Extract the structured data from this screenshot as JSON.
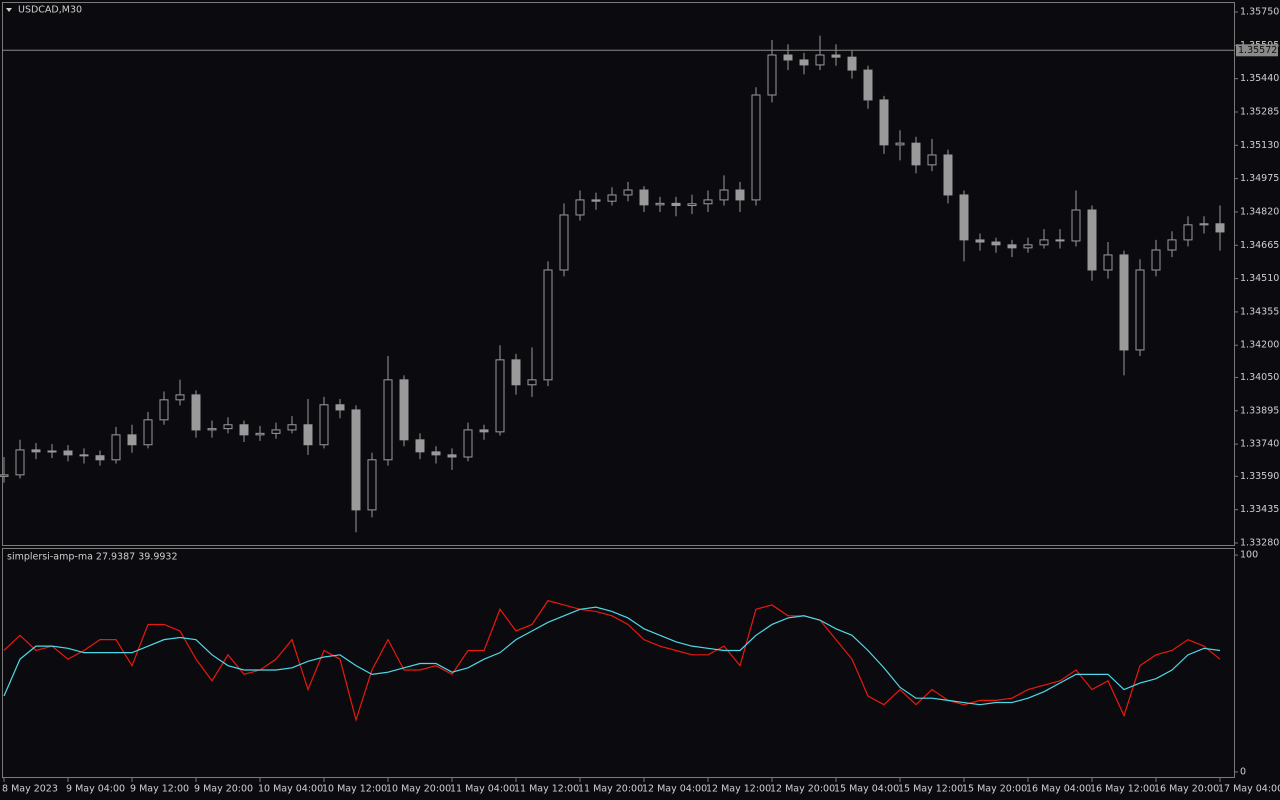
{
  "chart_data": [
    {
      "type": "candlestick",
      "title": "USDCAD,M30",
      "color": "#9a9a9a",
      "line_color": "#8a8a8a",
      "categories": [
        "8 May 2023",
        null,
        null,
        null,
        "9 May 04:00",
        null,
        null,
        null,
        "9 May 12:00",
        null,
        null,
        null,
        "9 May 20:00",
        null,
        null,
        null,
        "10 May 04:00",
        null,
        null,
        null,
        "10 May 12:00",
        null,
        null,
        null,
        "10 May 20:00",
        null,
        null,
        null,
        "11 May 04:00",
        null,
        null,
        null,
        "11 May 12:00",
        null,
        null,
        null,
        "11 May 20:00",
        null,
        null,
        null,
        "12 May 04:00",
        null,
        null,
        null,
        "12 May 12:00",
        null,
        null,
        null,
        "12 May 20:00",
        null,
        null,
        null,
        "15 May 04:00",
        null,
        null,
        null,
        "15 May 12:00",
        null,
        null,
        null,
        "15 May 20:00",
        null,
        null,
        null,
        "16 May 04:00",
        null,
        null,
        null,
        "16 May 12:00",
        null,
        null,
        null,
        "16 May 20:00",
        null,
        null,
        null,
        "17 May 04:00"
      ],
      "open": [
        1.3359,
        1.33597,
        1.33713,
        1.33704,
        1.33708,
        1.3369,
        1.33686,
        1.33667,
        1.33783,
        1.33737,
        1.33853,
        1.33946,
        1.33969,
        1.33806,
        1.33812,
        1.3383,
        1.33783,
        1.3379,
        1.33806,
        1.3383,
        1.33737,
        1.33923,
        1.33899,
        1.33434,
        1.33667,
        1.34039,
        1.3376,
        1.33704,
        1.3369,
        1.3368,
        1.33806,
        1.33797,
        1.34132,
        1.34016,
        1.34039,
        1.3455,
        1.34806,
        1.34876,
        1.3487,
        1.34899,
        1.34922,
        1.34853,
        1.3486,
        1.3485,
        1.34858,
        1.34876,
        1.34922,
        1.34876,
        1.35364,
        1.3555,
        1.35527,
        1.35504,
        1.3555,
        1.3554,
        1.3548,
        1.35341,
        1.35132,
        1.3514,
        1.35039,
        1.35085,
        1.34899,
        1.3469,
        1.3468,
        1.34667,
        1.34653,
        1.34667,
        1.3469,
        1.34685,
        1.34829,
        1.3455,
        1.3462,
        1.34178,
        1.3455,
        1.34643,
        1.3469,
        1.3476,
        1.34765
      ],
      "high": [
        1.3368,
        1.3376,
        1.33745,
        1.3374,
        1.33735,
        1.3372,
        1.3371,
        1.3382,
        1.3383,
        1.3389,
        1.33985,
        1.3404,
        1.3399,
        1.3385,
        1.33865,
        1.3385,
        1.33825,
        1.3384,
        1.3387,
        1.3395,
        1.3396,
        1.3395,
        1.3392,
        1.337,
        1.3415,
        1.3406,
        1.3379,
        1.3373,
        1.3372,
        1.3384,
        1.3383,
        1.342,
        1.3416,
        1.3419,
        1.3459,
        1.3486,
        1.3492,
        1.3491,
        1.34935,
        1.3496,
        1.3494,
        1.3489,
        1.3489,
        1.349,
        1.3492,
        1.3499,
        1.3496,
        1.354,
        1.3562,
        1.356,
        1.3556,
        1.3564,
        1.356,
        1.3557,
        1.355,
        1.3536,
        1.352,
        1.3517,
        1.3516,
        1.3511,
        1.3492,
        1.3472,
        1.347,
        1.3469,
        1.347,
        1.3474,
        1.3474,
        1.3492,
        1.3485,
        1.3468,
        1.3464,
        1.346,
        1.3469,
        1.3473,
        1.348,
        1.348,
        1.3485
      ],
      "low": [
        1.3356,
        1.3358,
        1.3367,
        1.33675,
        1.3366,
        1.3365,
        1.3364,
        1.3365,
        1.337,
        1.3372,
        1.3383,
        1.3392,
        1.3377,
        1.3377,
        1.3379,
        1.3375,
        1.33755,
        1.33765,
        1.3379,
        1.3369,
        1.3372,
        1.3386,
        1.3333,
        1.334,
        1.3364,
        1.3373,
        1.3367,
        1.3365,
        1.3362,
        1.3366,
        1.3376,
        1.3378,
        1.3397,
        1.3396,
        1.3401,
        1.3452,
        1.3478,
        1.3483,
        1.3485,
        1.3487,
        1.3482,
        1.3482,
        1.348,
        1.3481,
        1.3482,
        1.3485,
        1.3482,
        1.3485,
        1.3533,
        1.3548,
        1.3546,
        1.3548,
        1.355,
        1.3544,
        1.353,
        1.3509,
        1.3506,
        1.35,
        1.3501,
        1.3486,
        1.3459,
        1.3464,
        1.3463,
        1.3461,
        1.3463,
        1.3465,
        1.3465,
        1.3466,
        1.345,
        1.3451,
        1.3406,
        1.3415,
        1.3452,
        1.3461,
        1.3466,
        1.3472,
        1.3464
      ],
      "close": [
        1.33597,
        1.33713,
        1.33704,
        1.33708,
        1.3369,
        1.33686,
        1.33667,
        1.33783,
        1.33737,
        1.33853,
        1.33946,
        1.33969,
        1.33806,
        1.33812,
        1.3383,
        1.33783,
        1.3379,
        1.33806,
        1.3383,
        1.33737,
        1.33923,
        1.33899,
        1.33434,
        1.33667,
        1.34039,
        1.3376,
        1.33704,
        1.3369,
        1.3368,
        1.33806,
        1.33797,
        1.34132,
        1.34016,
        1.34039,
        1.3455,
        1.34806,
        1.34876,
        1.3487,
        1.34899,
        1.34922,
        1.34853,
        1.3486,
        1.3485,
        1.34858,
        1.34876,
        1.34922,
        1.34876,
        1.35364,
        1.3555,
        1.35527,
        1.35504,
        1.3555,
        1.3554,
        1.3548,
        1.35341,
        1.35132,
        1.3514,
        1.35039,
        1.35085,
        1.34899,
        1.3469,
        1.3468,
        1.34667,
        1.34653,
        1.34667,
        1.3469,
        1.34685,
        1.34829,
        1.3455,
        1.3462,
        1.34178,
        1.3455,
        1.34643,
        1.3469,
        1.3476,
        1.34765,
        1.34727
      ],
      "current_price": 1.35572,
      "ylim": [
        1.33266,
        1.35792
      ],
      "yticks": [
        {
          "value": 1.3575,
          "label": "1.35750"
        },
        1.35595,
        {
          "value": 1.3544,
          "label": "1.35440"
        },
        1.35285,
        {
          "value": 1.3513,
          "label": "1.35130"
        },
        1.34975,
        {
          "value": 1.3482,
          "label": "1.34820"
        },
        1.34665,
        {
          "value": 1.3451,
          "label": "1.34510"
        },
        1.34355,
        {
          "value": 1.342,
          "label": "1.34200"
        },
        {
          "value": 1.3405,
          "label": "1.34050"
        },
        1.33895,
        {
          "value": 1.3374,
          "label": "1.33740"
        },
        {
          "value": 1.3359,
          "label": "1.33590"
        },
        1.33435,
        {
          "value": 1.3328,
          "label": "1.33280"
        }
      ]
    },
    {
      "type": "line",
      "title": "simplersi-amp-ma 27.9387 39.9932",
      "series": [
        {
          "color": "#e8190f",
          "values": [
            56,
            63,
            56,
            58,
            52,
            56,
            61,
            61,
            49,
            68,
            68,
            65,
            52,
            42,
            54,
            45,
            47,
            52,
            61,
            38,
            56,
            52,
            24,
            47,
            61,
            47,
            47,
            49,
            45,
            56,
            56,
            75,
            65,
            68,
            79,
            77,
            75,
            74,
            72,
            68,
            61,
            58,
            56,
            54,
            54,
            58,
            49,
            75,
            77,
            72,
            72,
            70,
            61,
            52,
            35,
            31,
            38,
            31,
            38,
            33,
            31,
            33,
            33,
            34,
            38,
            40,
            42,
            47,
            38,
            42,
            26,
            49,
            54,
            56,
            61,
            58,
            52
          ]
        },
        {
          "color": "#4fd8e8",
          "values": [
            35,
            52,
            58,
            58,
            57,
            55,
            55,
            55,
            55,
            58,
            61,
            62,
            61,
            54,
            49,
            47,
            47,
            47,
            48,
            51,
            53,
            54,
            49,
            45,
            46,
            48,
            50,
            50,
            46,
            48,
            52,
            55,
            61,
            65,
            69,
            72,
            75,
            76,
            74,
            71,
            66,
            63,
            60,
            58,
            57,
            56,
            56,
            63,
            68,
            71,
            72,
            70,
            66,
            63,
            56,
            48,
            39,
            34,
            34,
            33,
            32,
            31,
            32,
            32,
            34,
            37,
            41,
            45,
            45,
            45,
            38,
            41,
            43,
            47,
            54,
            57,
            56
          ]
        }
      ],
      "ylim": [
        -2.8,
        102.8
      ],
      "yticks": [
        0,
        100
      ]
    }
  ]
}
